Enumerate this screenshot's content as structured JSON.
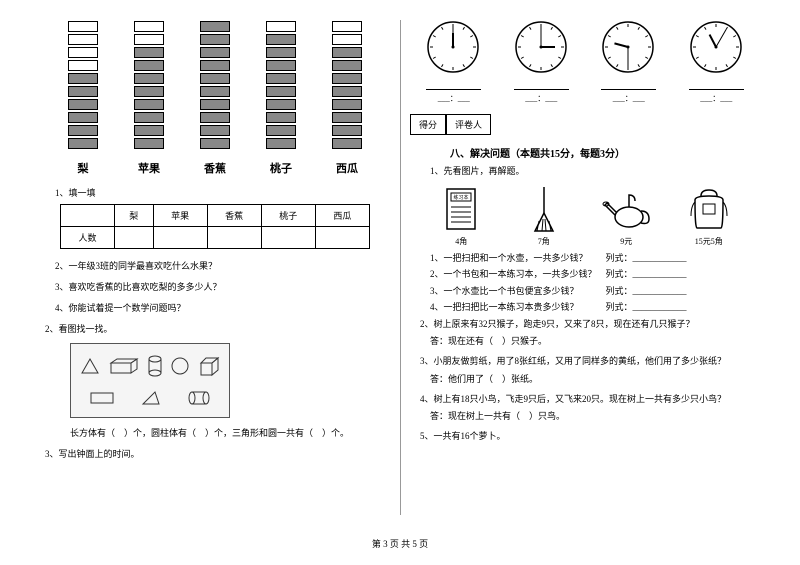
{
  "chart": {
    "columns": [
      {
        "label": "梨",
        "filled": 6,
        "empty": 4
      },
      {
        "label": "苹果",
        "filled": 8,
        "empty": 2
      },
      {
        "label": "香蕉",
        "filled": 10,
        "empty": 0
      },
      {
        "label": "桃子",
        "filled": 9,
        "empty": 1
      },
      {
        "label": "西瓜",
        "filled": 8,
        "empty": 2
      }
    ]
  },
  "table": {
    "row1": [
      "",
      "梨",
      "苹果",
      "香蕉",
      "桃子",
      "西瓜"
    ],
    "row2_label": "人数"
  },
  "left": {
    "q1": "1、填一填",
    "q2": "2、一年级3班的同学最喜欢吃什么水果？",
    "q3": "3、喜欢吃香蕉的比喜欢吃梨的多多少人？",
    "q4": "4、你能试着提一个数学问题吗？",
    "section2": "2、看图找一找。",
    "shapes_text": "长方体有（　）个，圆柱体有（　）个，三角形和圆一共有（　）个。",
    "section3": "3、写出钟面上的时间。"
  },
  "clocks": {
    "times": [
      {
        "hour": 12,
        "minute": 0
      },
      {
        "hour": 3,
        "minute": 0
      },
      {
        "hour": 9,
        "minute": 30
      },
      {
        "hour": 11,
        "minute": 5
      }
    ],
    "time_sep": "："
  },
  "score": {
    "c1": "得分",
    "c2": "评卷人"
  },
  "section8": "八、解决问题（本题共15分，每题3分）",
  "right": {
    "q1": "1、先看图片，再解题。",
    "items": [
      {
        "label": "4角"
      },
      {
        "label": "7角"
      },
      {
        "label": "9元"
      },
      {
        "label": "15元5角"
      }
    ],
    "sub1": "1、一把扫把和一个水壶，一共多少钱？　　列式：____________",
    "sub2": "2、一个书包和一本练习本，一共多少钱？　列式：____________",
    "sub3": "3、一个水壶比一个书包便宜多少钱？　　　列式：____________",
    "sub4": "4、一把扫把比一本练习本贵多少钱？　　　列式：____________",
    "q2": "2、树上原来有32只猴子，跑走9只，又来了8只，现在还有几只猴子？",
    "a2": "答：现在还有（　）只猴子。",
    "q3": "3、小朋友做剪纸，用了8张红纸，又用了同样多的黄纸，他们用了多少张纸？",
    "a3": "答：他们用了（　）张纸。",
    "q4": "4、树上有18只小鸟，飞走9只后，又飞来20只。现在树上一共有多少只小鸟？",
    "a4": "答：现在树上一共有（　）只鸟。",
    "q5": "5、一共有16个萝卜。"
  },
  "footer": "第 3 页 共 5 页"
}
